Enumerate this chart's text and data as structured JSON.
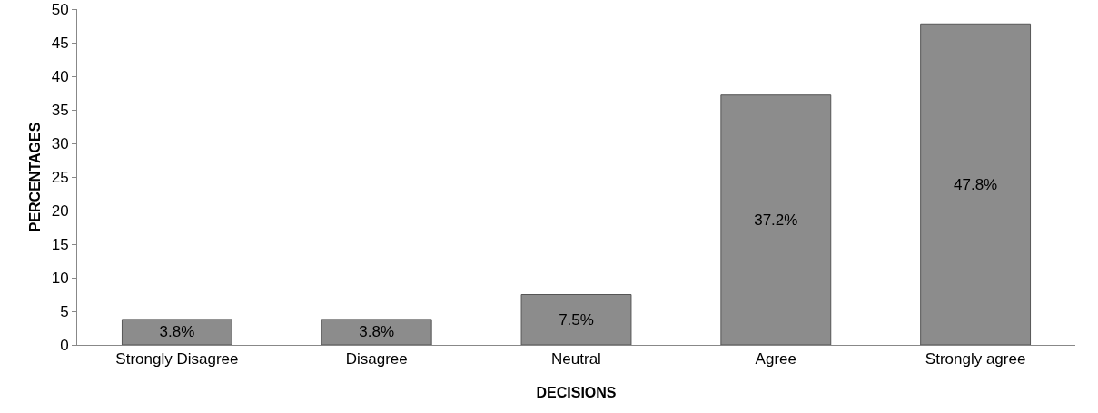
{
  "chart_data": {
    "type": "bar",
    "xlabel": "DECISIONS",
    "ylabel": "PERCENTAGES",
    "categories": [
      "Strongly Disagree",
      "Disagree",
      "Neutral",
      "Agree",
      "Strongly agree"
    ],
    "values": [
      3.8,
      3.8,
      7.5,
      37.2,
      47.8
    ],
    "value_labels": [
      "3.8%",
      "3.8%",
      "7.5%",
      "37.2%",
      "47.8%"
    ],
    "color": "#8c8c8c",
    "ylim": [
      0,
      50
    ],
    "yticks": [
      0,
      5,
      10,
      15,
      20,
      25,
      30,
      35,
      40,
      45,
      50
    ],
    "grid": false,
    "legend": false
  }
}
